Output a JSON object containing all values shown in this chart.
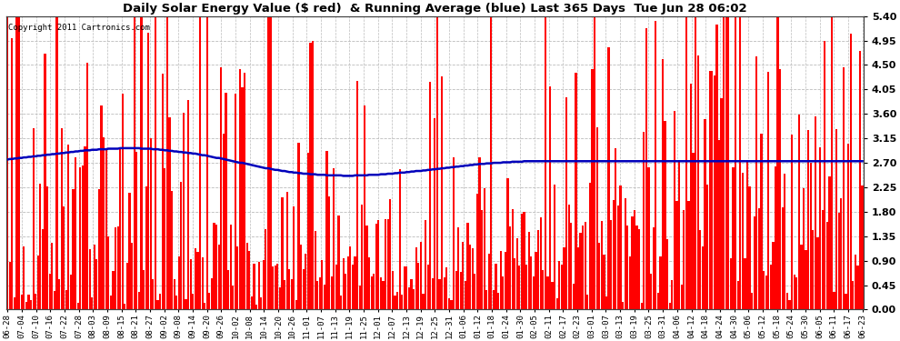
{
  "title": "Daily Solar Energy Value ($ red)  & Running Average (blue) Last 365 Days  Tue Jun 28 06:02",
  "copyright": "Copyright 2011 Cartronics.com",
  "ylim": [
    0.0,
    5.4
  ],
  "yticks": [
    0.0,
    0.45,
    0.9,
    1.35,
    1.8,
    2.25,
    2.7,
    3.15,
    3.6,
    4.05,
    4.5,
    4.95,
    5.4
  ],
  "bar_color": "#ff0000",
  "avg_color": "#0000bb",
  "bg_color": "#ffffff",
  "grid_color": "#bbbbbb",
  "x_labels": [
    "06-28",
    "07-04",
    "07-10",
    "07-16",
    "07-22",
    "07-28",
    "08-03",
    "08-09",
    "08-15",
    "08-21",
    "08-27",
    "09-02",
    "09-08",
    "09-14",
    "09-20",
    "09-26",
    "10-02",
    "10-08",
    "10-14",
    "10-20",
    "10-26",
    "11-01",
    "11-07",
    "11-13",
    "11-19",
    "11-25",
    "12-01",
    "12-07",
    "12-13",
    "12-19",
    "12-25",
    "12-31",
    "01-06",
    "01-12",
    "01-18",
    "01-24",
    "01-30",
    "02-05",
    "02-11",
    "02-17",
    "02-23",
    "03-01",
    "03-07",
    "03-13",
    "03-19",
    "03-25",
    "03-31",
    "04-06",
    "04-12",
    "04-18",
    "04-24",
    "04-30",
    "05-06",
    "05-12",
    "05-18",
    "05-24",
    "05-30",
    "06-05",
    "06-11",
    "06-17",
    "06-23"
  ],
  "avg_curve": [
    2.76,
    2.77,
    2.77,
    2.78,
    2.78,
    2.79,
    2.79,
    2.8,
    2.8,
    2.81,
    2.81,
    2.82,
    2.82,
    2.83,
    2.83,
    2.84,
    2.84,
    2.85,
    2.85,
    2.86,
    2.86,
    2.87,
    2.87,
    2.88,
    2.88,
    2.89,
    2.89,
    2.9,
    2.9,
    2.91,
    2.91,
    2.92,
    2.92,
    2.93,
    2.93,
    2.93,
    2.94,
    2.94,
    2.94,
    2.95,
    2.95,
    2.95,
    2.95,
    2.96,
    2.96,
    2.96,
    2.96,
    2.96,
    2.97,
    2.97,
    2.97,
    2.97,
    2.97,
    2.97,
    2.97,
    2.97,
    2.97,
    2.96,
    2.96,
    2.96,
    2.96,
    2.96,
    2.95,
    2.95,
    2.95,
    2.94,
    2.94,
    2.93,
    2.93,
    2.92,
    2.92,
    2.91,
    2.91,
    2.9,
    2.9,
    2.89,
    2.89,
    2.88,
    2.88,
    2.87,
    2.87,
    2.86,
    2.85,
    2.84,
    2.84,
    2.83,
    2.82,
    2.81,
    2.8,
    2.79,
    2.79,
    2.78,
    2.77,
    2.76,
    2.75,
    2.74,
    2.73,
    2.72,
    2.71,
    2.7,
    2.7,
    2.69,
    2.68,
    2.67,
    2.66,
    2.65,
    2.64,
    2.63,
    2.62,
    2.61,
    2.6,
    2.6,
    2.59,
    2.58,
    2.57,
    2.57,
    2.56,
    2.55,
    2.55,
    2.54,
    2.53,
    2.53,
    2.52,
    2.52,
    2.51,
    2.51,
    2.5,
    2.5,
    2.5,
    2.49,
    2.49,
    2.49,
    2.48,
    2.48,
    2.48,
    2.48,
    2.47,
    2.47,
    2.47,
    2.47,
    2.47,
    2.47,
    2.47,
    2.46,
    2.46,
    2.46,
    2.46,
    2.46,
    2.47,
    2.47,
    2.47,
    2.47,
    2.47,
    2.47,
    2.48,
    2.48,
    2.48,
    2.48,
    2.48,
    2.49,
    2.49,
    2.49,
    2.5,
    2.5,
    2.5,
    2.51,
    2.51,
    2.52,
    2.52,
    2.52,
    2.53,
    2.53,
    2.54,
    2.54,
    2.55,
    2.55,
    2.55,
    2.56,
    2.56,
    2.57,
    2.57,
    2.58,
    2.58,
    2.59,
    2.59,
    2.6,
    2.6,
    2.61,
    2.61,
    2.62,
    2.62,
    2.63,
    2.63,
    2.64,
    2.64,
    2.65,
    2.65,
    2.66,
    2.66,
    2.67,
    2.67,
    2.68,
    2.68,
    2.68,
    2.69,
    2.69,
    2.69,
    2.7,
    2.7,
    2.7,
    2.7,
    2.71,
    2.71,
    2.71,
    2.71,
    2.72,
    2.72,
    2.72,
    2.72,
    2.72,
    2.73,
    2.73,
    2.73,
    2.73,
    2.73,
    2.73,
    2.73,
    2.73,
    2.73,
    2.73,
    2.73,
    2.73,
    2.73,
    2.73,
    2.73,
    2.73,
    2.73,
    2.73,
    2.73,
    2.73,
    2.73,
    2.73,
    2.73,
    2.73,
    2.73,
    2.73,
    2.73,
    2.73,
    2.73,
    2.73,
    2.73,
    2.73,
    2.73,
    2.73,
    2.73,
    2.73,
    2.73,
    2.73,
    2.73,
    2.73,
    2.73,
    2.73,
    2.73,
    2.73,
    2.73,
    2.73,
    2.73,
    2.73,
    2.73,
    2.73,
    2.73,
    2.73,
    2.73,
    2.73,
    2.73,
    2.73,
    2.73,
    2.73,
    2.73,
    2.73,
    2.73,
    2.73,
    2.73,
    2.73,
    2.73,
    2.73,
    2.73,
    2.73,
    2.73,
    2.73,
    2.73,
    2.73,
    2.73,
    2.73,
    2.73,
    2.73,
    2.73,
    2.73,
    2.73,
    2.73,
    2.73,
    2.73,
    2.73,
    2.73,
    2.73,
    2.73,
    2.73,
    2.73,
    2.73,
    2.73,
    2.73,
    2.73,
    2.73,
    2.73,
    2.73,
    2.73,
    2.73,
    2.73,
    2.73,
    2.73,
    2.73,
    2.73,
    2.73,
    2.73,
    2.73,
    2.73,
    2.73,
    2.73,
    2.73,
    2.73,
    2.73,
    2.73,
    2.73,
    2.73,
    2.73,
    2.73,
    2.73,
    2.73,
    2.73,
    2.73,
    2.73,
    2.73,
    2.73,
    2.73,
    2.73,
    2.73,
    2.73,
    2.73,
    2.73,
    2.73,
    2.73,
    2.73,
    2.73,
    2.73,
    2.73,
    2.73,
    2.73,
    2.73,
    2.73,
    2.73,
    2.73,
    2.73,
    2.73,
    2.73,
    2.73
  ],
  "seed": 77
}
